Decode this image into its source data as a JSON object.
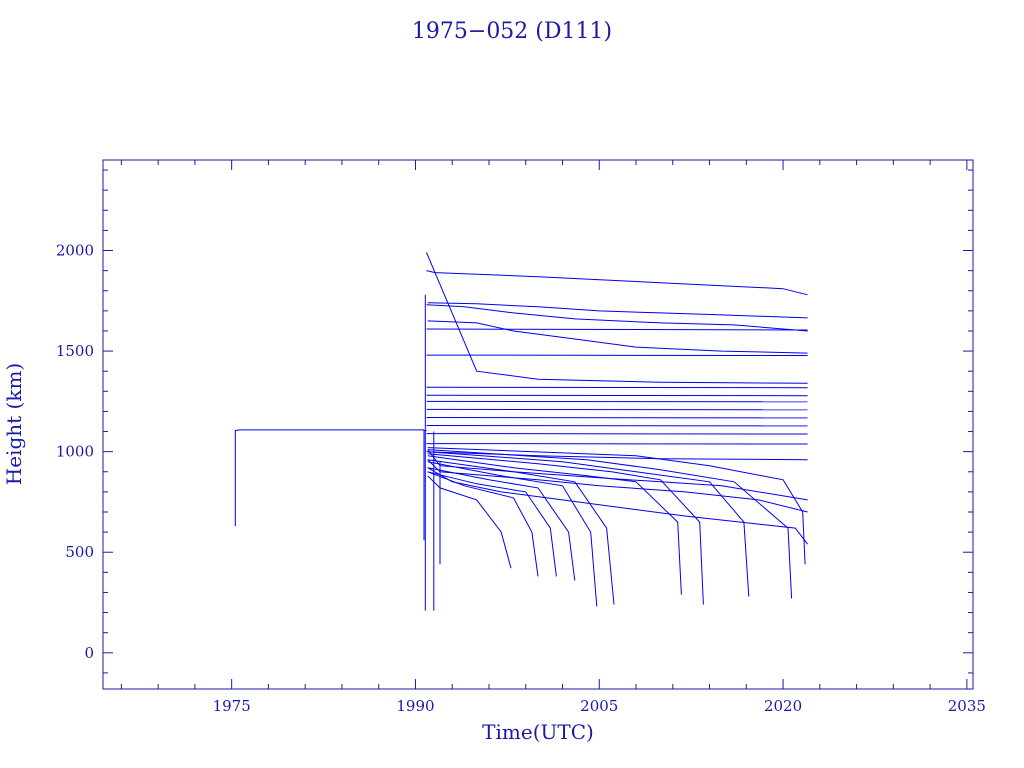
{
  "chart_data": {
    "type": "line",
    "title": "1975−052 (D111)",
    "xlabel": "Time(UTC)",
    "ylabel": "Height (km)",
    "xlim": [
      1964.5,
      2035.5
    ],
    "ylim": [
      -180,
      2450
    ],
    "xticks": [
      1975,
      1990,
      2005,
      2020,
      2035
    ],
    "yticks": [
      0,
      500,
      1000,
      1500,
      2000
    ],
    "grid": false,
    "legend": "none",
    "colors": {
      "axis": "#1a1aa6",
      "series": "#0000ee"
    },
    "series": [
      {
        "x": [
          1975.3,
          1975.3,
          1975.7,
          1990.7
        ],
        "y": [
          630,
          1105,
          1108,
          1108
        ]
      },
      {
        "x": [
          1990.7,
          1990.7,
          1990.9
        ],
        "y": [
          560,
          1105,
          1105
        ]
      },
      {
        "x": [
          1990.9,
          1991.6,
          2000,
          2010,
          2020,
          2022.0
        ],
        "y": [
          1900,
          1890,
          1870,
          1840,
          1810,
          1780
        ]
      },
      {
        "x": [
          1991.0,
          1995,
          2000,
          2005,
          2010,
          2015,
          2022.0
        ],
        "y": [
          1740,
          1735,
          1720,
          1700,
          1690,
          1680,
          1665
        ]
      },
      {
        "x": [
          1990.9,
          1994,
          1998,
          2003,
          2010,
          2016,
          2022.0
        ],
        "y": [
          1730,
          1720,
          1690,
          1660,
          1640,
          1630,
          1600
        ]
      },
      {
        "x": [
          1991.0,
          1995,
          1998,
          2003,
          2008,
          2015,
          2022.0
        ],
        "y": [
          1650,
          1640,
          1600,
          1560,
          1520,
          1500,
          1490
        ]
      },
      {
        "x": [
          1990.9,
          2022.0
        ],
        "y": [
          1610,
          1605
        ]
      },
      {
        "x": [
          1990.9,
          2022.0
        ],
        "y": [
          1480,
          1478
        ]
      },
      {
        "x": [
          1990.9,
          1995,
          2000,
          2010,
          2022.0
        ],
        "y": [
          1990,
          1400,
          1360,
          1345,
          1340
        ]
      },
      {
        "x": [
          1990.9,
          2022.0
        ],
        "y": [
          1320,
          1318
        ]
      },
      {
        "x": [
          1990.9,
          2022.0
        ],
        "y": [
          1280,
          1278
        ]
      },
      {
        "x": [
          1990.9,
          2022.0
        ],
        "y": [
          1250,
          1248
        ]
      },
      {
        "x": [
          1990.9,
          2022.0
        ],
        "y": [
          1210,
          1208
        ]
      },
      {
        "x": [
          1990.9,
          2022.0
        ],
        "y": [
          1170,
          1168
        ]
      },
      {
        "x": [
          1990.9,
          2022.0
        ],
        "y": [
          1130,
          1128
        ]
      },
      {
        "x": [
          1990.9,
          2022.0
        ],
        "y": [
          1090,
          1088
        ]
      },
      {
        "x": [
          1990.9,
          2022.0
        ],
        "y": [
          1040,
          1038
        ]
      },
      {
        "x": [
          1990.9,
          2000,
          2010,
          2022.0
        ],
        "y": [
          1000,
          980,
          965,
          960
        ]
      },
      {
        "x": [
          1991.0,
          1992,
          1998,
          2005,
          2010,
          2015,
          2022.0
        ],
        "y": [
          1010,
          930,
          900,
          870,
          850,
          830,
          760
        ]
      },
      {
        "x": [
          1991.0,
          1992,
          1996,
          2000,
          2005,
          2012,
          2018,
          2022.0
        ],
        "y": [
          960,
          900,
          880,
          860,
          830,
          800,
          760,
          700
        ]
      },
      {
        "x": [
          1991.0,
          1993,
          1997,
          2002,
          2007,
          2012,
          2018,
          2021,
          2022.0
        ],
        "y": [
          920,
          850,
          800,
          760,
          720,
          680,
          640,
          620,
          540
        ]
      },
      {
        "x": [
          1991.0,
          1992,
          1995,
          1997,
          1997.8
        ],
        "y": [
          880,
          820,
          760,
          600,
          420
        ]
      },
      {
        "x": [
          1991.0,
          1994,
          1998,
          1999.5,
          2000.0
        ],
        "y": [
          900,
          830,
          770,
          600,
          380
        ]
      },
      {
        "x": [
          1991.0,
          1995,
          1999,
          2001,
          2001.5
        ],
        "y": [
          900,
          840,
          800,
          620,
          380
        ]
      },
      {
        "x": [
          1991.0,
          1996,
          2000,
          2002.5,
          2003.0
        ],
        "y": [
          920,
          860,
          820,
          600,
          360
        ]
      },
      {
        "x": [
          1991.0,
          1997,
          2002,
          2004.3,
          2004.8
        ],
        "y": [
          950,
          880,
          830,
          600,
          230
        ]
      },
      {
        "x": [
          1991.0,
          1998,
          2003,
          2005.6,
          2006.2
        ],
        "y": [
          960,
          900,
          850,
          620,
          240
        ]
      },
      {
        "x": [
          1991.0,
          1998,
          2004,
          2008,
          2011.4,
          2011.7
        ],
        "y": [
          980,
          920,
          880,
          850,
          650,
          290
        ]
      },
      {
        "x": [
          1991.0,
          2000,
          2006,
          2010,
          2013.2,
          2013.5
        ],
        "y": [
          990,
          940,
          900,
          860,
          650,
          240
        ]
      },
      {
        "x": [
          1991.0,
          2002,
          2008,
          2014,
          2016.8,
          2017.2
        ],
        "y": [
          1000,
          950,
          900,
          850,
          650,
          280
        ]
      },
      {
        "x": [
          1991.0,
          2004,
          2010,
          2016,
          2020.4,
          2020.7
        ],
        "y": [
          1010,
          960,
          910,
          850,
          620,
          270
        ]
      },
      {
        "x": [
          1991.0,
          2008,
          2014,
          2020,
          2021.6,
          2021.8
        ],
        "y": [
          1020,
          980,
          930,
          860,
          700,
          440
        ]
      },
      {
        "x": [
          1990.8,
          1990.8
        ],
        "y": [
          210,
          1780
        ]
      },
      {
        "x": [
          1991.5,
          1991.5
        ],
        "y": [
          210,
          1100
        ]
      },
      {
        "x": [
          1992.0,
          1992.0
        ],
        "y": [
          440,
          950
        ]
      }
    ]
  }
}
